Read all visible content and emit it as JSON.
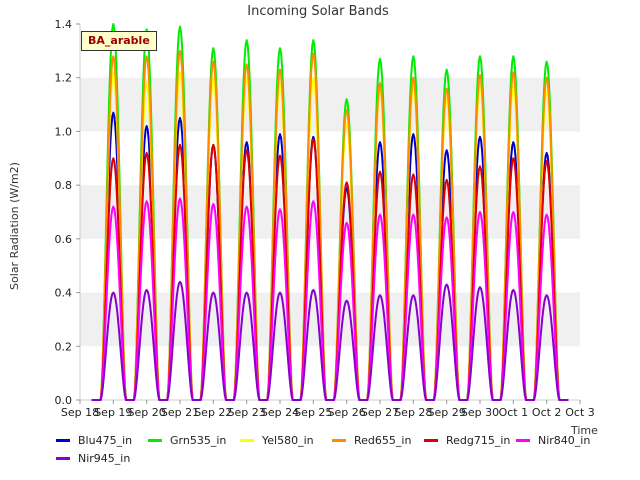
{
  "chart_data": {
    "type": "line",
    "title": "Incoming Solar Bands",
    "xlabel": "Time",
    "ylabel": "Solar Radiation (W/m2)",
    "ylim": [
      0,
      1.4
    ],
    "yticks": [
      "0.0",
      "0.2",
      "0.4",
      "0.6",
      "0.8",
      "1.0",
      "1.2",
      "1.4"
    ],
    "xticks": [
      "Sep 18",
      "Sep 19",
      "Sep 20",
      "Sep 21",
      "Sep 22",
      "Sep 23",
      "Sep 24",
      "Sep 25",
      "Sep 26",
      "Sep 27",
      "Sep 28",
      "Sep 29",
      "Sep 30",
      "Oct 1",
      "Oct 2",
      "Oct 3"
    ],
    "day_labels": [
      "Sep 19",
      "Sep 20",
      "Sep 21",
      "Sep 22",
      "Sep 23",
      "Sep 24",
      "Sep 25",
      "Sep 26",
      "Sep 27",
      "Sep 28",
      "Sep 29",
      "Sep 30",
      "Oct 1",
      "Oct 2"
    ],
    "grid": "horizontal alternating bands",
    "legend_position": "bottom",
    "annotation": "BA_arable",
    "series": [
      {
        "name": "Blu475_in",
        "color": "#0000cc",
        "peaks": [
          1.07,
          1.02,
          1.05,
          0.95,
          0.96,
          0.99,
          0.98,
          0.79,
          0.96,
          0.99,
          0.93,
          0.98,
          0.96,
          0.92
        ]
      },
      {
        "name": "Grn535_in",
        "color": "#00ee00",
        "peaks": [
          1.4,
          1.38,
          1.39,
          1.31,
          1.34,
          1.31,
          1.34,
          1.12,
          1.27,
          1.28,
          1.23,
          1.28,
          1.28,
          1.26
        ]
      },
      {
        "name": "Yel580_in",
        "color": "#ffff00",
        "peaks": [
          1.22,
          1.18,
          1.22,
          1.2,
          1.2,
          1.18,
          1.2,
          1.03,
          1.16,
          1.17,
          1.12,
          1.17,
          1.17,
          1.15
        ]
      },
      {
        "name": "Red655_in",
        "color": "#ff8c00",
        "peaks": [
          1.28,
          1.28,
          1.3,
          1.26,
          1.25,
          1.23,
          1.29,
          1.08,
          1.18,
          1.2,
          1.16,
          1.21,
          1.22,
          1.2
        ]
      },
      {
        "name": "Redg715_in",
        "color": "#dd0000",
        "peaks": [
          0.9,
          0.92,
          0.95,
          0.95,
          0.93,
          0.91,
          0.97,
          0.81,
          0.85,
          0.84,
          0.82,
          0.87,
          0.9,
          0.89
        ]
      },
      {
        "name": "Nir840_in",
        "color": "#ff00ff",
        "peaks": [
          0.72,
          0.74,
          0.75,
          0.73,
          0.72,
          0.71,
          0.74,
          0.66,
          0.69,
          0.69,
          0.68,
          0.7,
          0.7,
          0.69
        ]
      },
      {
        "name": "Nir945_in",
        "color": "#8800cc",
        "peaks": [
          0.4,
          0.41,
          0.44,
          0.4,
          0.4,
          0.4,
          0.41,
          0.37,
          0.39,
          0.39,
          0.43,
          0.42,
          0.41,
          0.39
        ]
      }
    ]
  }
}
